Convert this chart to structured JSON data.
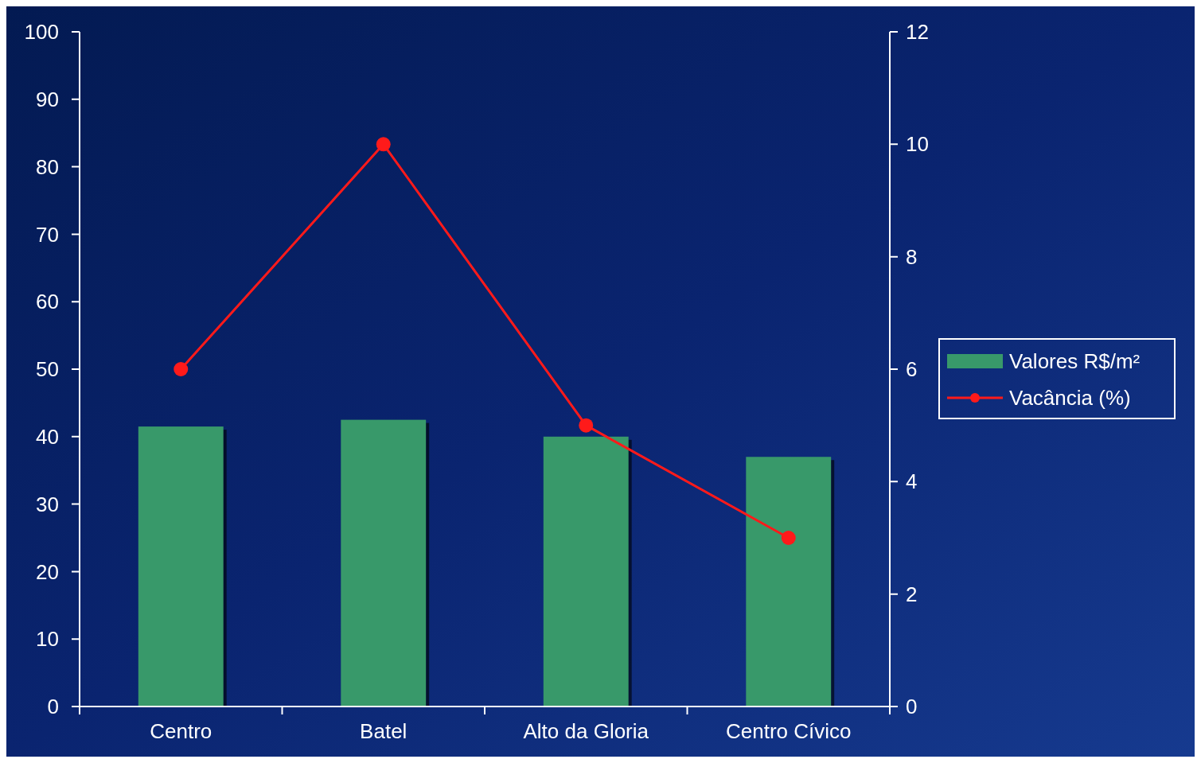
{
  "chart_data": {
    "type": "bar",
    "categories": [
      "Centro",
      "Batel",
      "Alto da Gloria",
      "Centro Cívico"
    ],
    "series": [
      {
        "name": "Valores R$/m²",
        "color": "#38996a",
        "values": [
          41.5,
          42.5,
          40,
          37
        ]
      },
      {
        "name": "Vacância (%)",
        "type": "line",
        "axis": "y2",
        "color": "#ff1a1a",
        "marker": "circle",
        "values": [
          6,
          10,
          5,
          3
        ]
      }
    ],
    "ylim": [
      0,
      100
    ],
    "yticks": [
      0,
      10,
      20,
      30,
      40,
      50,
      60,
      70,
      80,
      90,
      100
    ],
    "y2lim": [
      0,
      12
    ],
    "y2ticks": [
      0,
      2,
      4,
      6,
      8,
      10,
      12
    ],
    "legend": "right"
  }
}
